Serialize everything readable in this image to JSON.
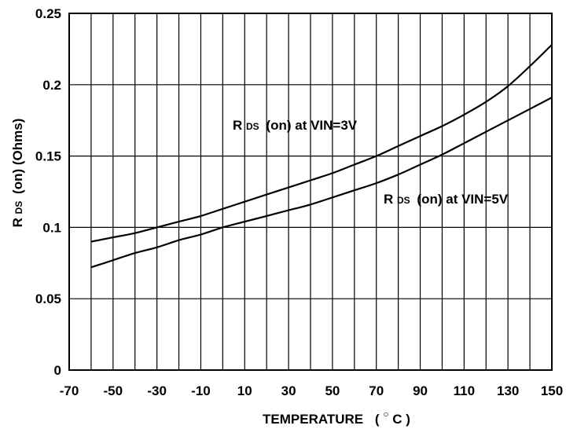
{
  "chart_data": {
    "type": "line",
    "title": "",
    "xlabel": "TEMPERATURE",
    "xlabel_unit": "C",
    "xlabel_unit_prefix": "(",
    "xlabel_unit_suffix": ")",
    "ylabel_main": "R",
    "ylabel_sub": "DS",
    "ylabel_rest": "(on)  (Ohms)",
    "xlim": [
      -70,
      150
    ],
    "ylim": [
      0,
      0.25
    ],
    "grid": true,
    "x_ticks": [
      "-70",
      "-50",
      "-30",
      "-10",
      "10",
      "30",
      "50",
      "70",
      "90",
      "110",
      "130",
      "150"
    ],
    "y_ticks": [
      "0",
      "0.05",
      "0.1",
      "0.15",
      "0.2",
      "0.25"
    ],
    "series": [
      {
        "label_main": "R",
        "label_sub": "DS",
        "label_rest": "(on)  at  VIN=3V",
        "x": [
          -60,
          -50,
          -40,
          -30,
          -20,
          -10,
          0,
          10,
          20,
          30,
          40,
          50,
          60,
          70,
          80,
          90,
          100,
          110,
          120,
          130,
          140,
          150
        ],
        "y": [
          0.09,
          0.093,
          0.096,
          0.1,
          0.104,
          0.108,
          0.113,
          0.118,
          0.123,
          0.128,
          0.133,
          0.138,
          0.144,
          0.15,
          0.157,
          0.164,
          0.171,
          0.179,
          0.188,
          0.199,
          0.213,
          0.228
        ]
      },
      {
        "label_main": "R",
        "label_sub": "DS",
        "label_rest": "(on)  at  VIN=5V",
        "x": [
          -60,
          -50,
          -40,
          -30,
          -20,
          -10,
          0,
          10,
          20,
          30,
          40,
          50,
          60,
          70,
          80,
          90,
          100,
          110,
          120,
          130,
          140,
          150
        ],
        "y": [
          0.072,
          0.077,
          0.082,
          0.086,
          0.091,
          0.095,
          0.1,
          0.104,
          0.108,
          0.112,
          0.116,
          0.121,
          0.126,
          0.131,
          0.137,
          0.144,
          0.151,
          0.159,
          0.167,
          0.175,
          0.183,
          0.191
        ]
      }
    ]
  }
}
